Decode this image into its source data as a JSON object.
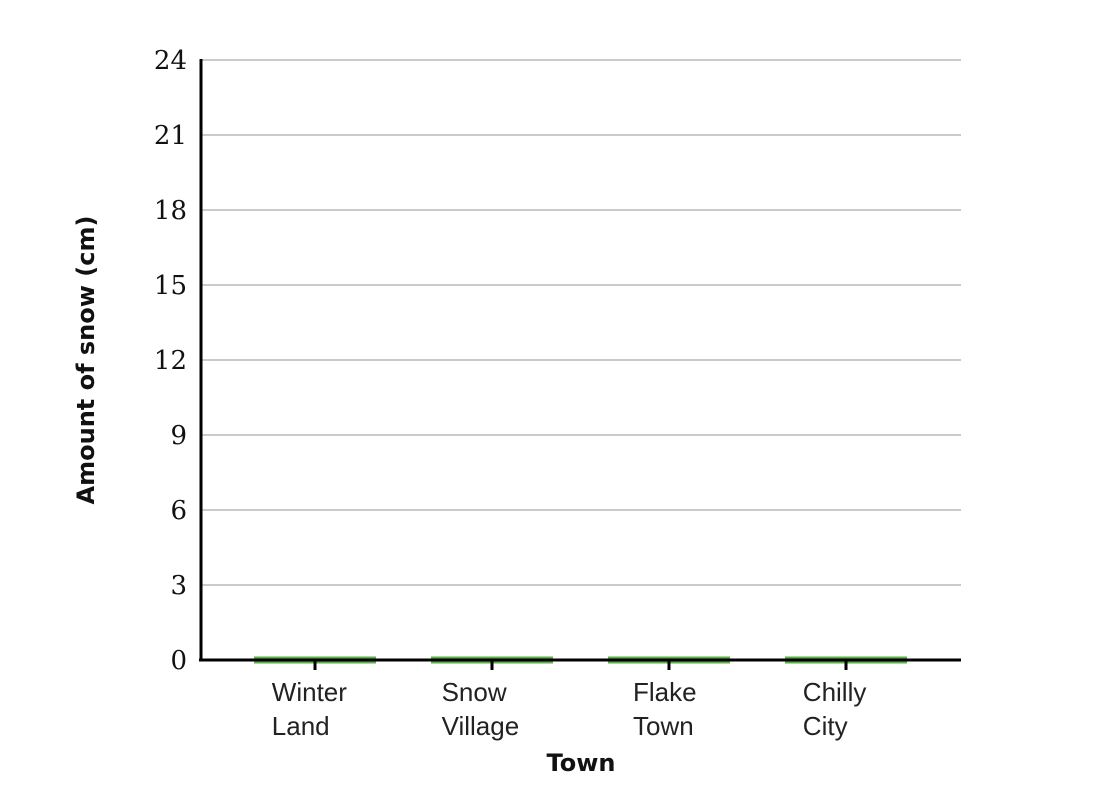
{
  "chart_data": {
    "type": "bar",
    "title": "",
    "xlabel": "Town",
    "ylabel": "Amount of snow (cm)",
    "categories": [
      [
        "Winter",
        "Land"
      ],
      [
        "Snow",
        "Village"
      ],
      [
        "Flake",
        "Town"
      ],
      [
        "Chilly",
        "City"
      ]
    ],
    "values": [
      0,
      0,
      0,
      0
    ],
    "ylim": [
      0,
      24
    ],
    "yticks": [
      "0",
      "3",
      "6",
      "9",
      "12",
      "15",
      "18",
      "21",
      "24"
    ],
    "grid": true,
    "legend": "none",
    "bar_color": "#5aaf48"
  }
}
